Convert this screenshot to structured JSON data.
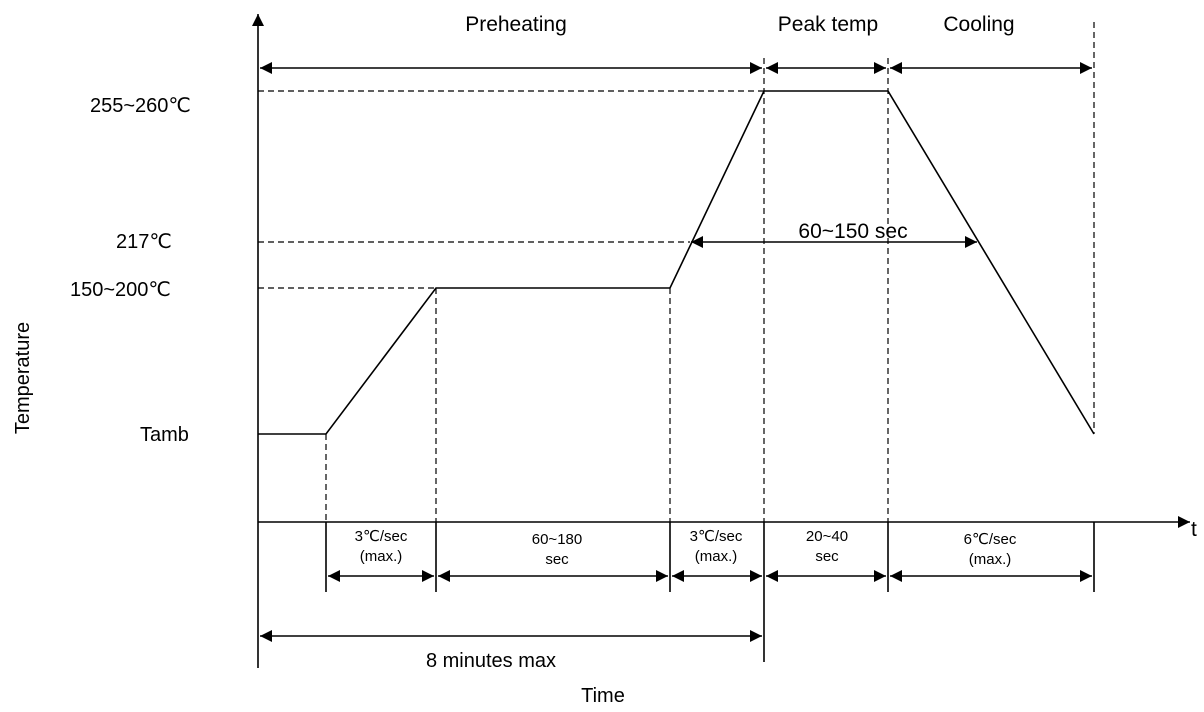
{
  "axes": {
    "y_label": "Temperature",
    "x_label": "Time",
    "x_end_label": "t"
  },
  "temperature_levels": {
    "peak": "255~260℃",
    "liquidus": "217℃",
    "soak": "150~200℃",
    "ambient": "Tamb"
  },
  "zones": {
    "preheating": "Preheating",
    "peak_temp": "Peak temp",
    "cooling": "Cooling"
  },
  "durations": {
    "above_liquidus": "60~150 sec",
    "total": "8 minutes max"
  },
  "intervals": [
    {
      "line1": "3℃/sec",
      "line2": "(max.)"
    },
    {
      "line1": "60~180",
      "line2": "sec"
    },
    {
      "line1": "3℃/sec",
      "line2": "(max.)"
    },
    {
      "line1": "20~40",
      "line2": "sec"
    },
    {
      "line1": "6℃/sec",
      "line2": "(max.)"
    }
  ]
}
